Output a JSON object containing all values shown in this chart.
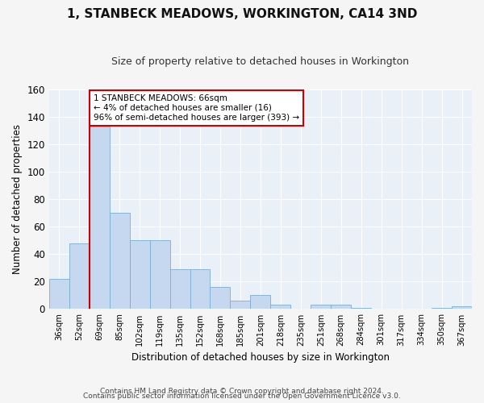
{
  "title": "1, STANBECK MEADOWS, WORKINGTON, CA14 3ND",
  "subtitle": "Size of property relative to detached houses in Workington",
  "xlabel": "Distribution of detached houses by size in Workington",
  "ylabel": "Number of detached properties",
  "bar_color": "#c5d8f0",
  "bar_edge_color": "#7aafd4",
  "background_color": "#eaf0f8",
  "grid_color": "#ffffff",
  "fig_background": "#f5f5f5",
  "categories": [
    "36sqm",
    "52sqm",
    "69sqm",
    "85sqm",
    "102sqm",
    "119sqm",
    "135sqm",
    "152sqm",
    "168sqm",
    "185sqm",
    "201sqm",
    "218sqm",
    "235sqm",
    "251sqm",
    "268sqm",
    "284sqm",
    "301sqm",
    "317sqm",
    "334sqm",
    "350sqm",
    "367sqm"
  ],
  "values": [
    22,
    48,
    133,
    70,
    50,
    50,
    29,
    29,
    16,
    6,
    10,
    3,
    0,
    3,
    3,
    1,
    0,
    0,
    0,
    1,
    2
  ],
  "ylim": [
    0,
    160
  ],
  "yticks": [
    0,
    20,
    40,
    60,
    80,
    100,
    120,
    140,
    160
  ],
  "property_line_idx": 2,
  "property_line_color": "#cc0000",
  "annotation_line1": "1 STANBECK MEADOWS: 66sqm",
  "annotation_line2": "← 4% of detached houses are smaller (16)",
  "annotation_line3": "96% of semi-detached houses are larger (393) →",
  "annotation_box_color": "#cc0000",
  "footer_line1": "Contains HM Land Registry data © Crown copyright and database right 2024.",
  "footer_line2": "Contains public sector information licensed under the Open Government Licence v3.0."
}
